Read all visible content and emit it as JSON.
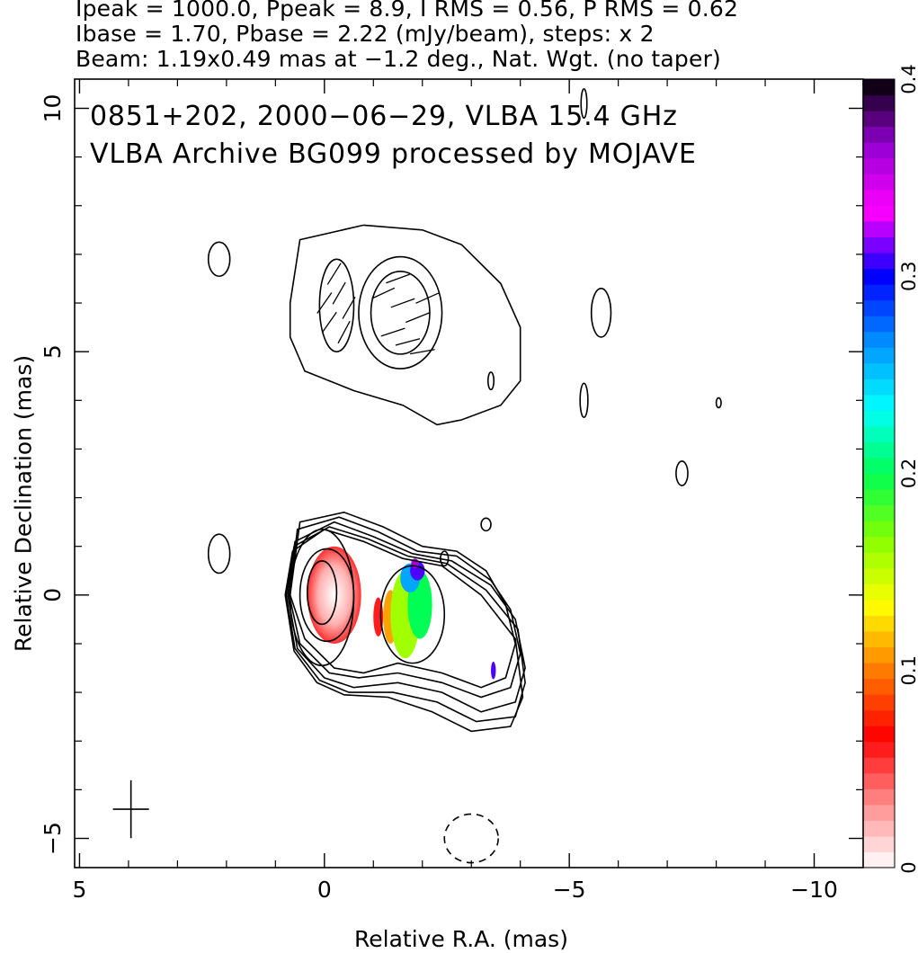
{
  "header": {
    "line1": "Ipeak = 1000.0, Ppeak = 8.9, I RMS = 0.56, P RMS = 0.62",
    "line2": "Ibase = 1.70, Pbase = 2.22 (mJy/beam), steps: x 2",
    "line3": "Beam: 1.19x0.49 mas at −1.2 deg., Nat. Wgt. (no taper)"
  },
  "annotation": {
    "line1": "0851+202, 2000−06−29, VLBA 15.4 GHz",
    "line2": "VLBA Archive BG099 processed by MOJAVE"
  },
  "chart_data": {
    "type": "contour",
    "xlabel": "Relative R.A. (mas)",
    "ylabel": "Relative Declination (mas)",
    "xlim": [
      5.1,
      -11.0
    ],
    "ylim": [
      -5.6,
      10.6
    ],
    "x_ticks": [
      5,
      0,
      -5,
      -10
    ],
    "x_tick_labels": [
      "5",
      "0",
      "−5",
      "−10"
    ],
    "y_ticks": [
      -5,
      0,
      5,
      10
    ],
    "y_tick_labels": [
      "−5",
      "0",
      "5",
      "10"
    ],
    "colorbar": {
      "range": [
        0,
        0.4
      ],
      "ticks": [
        0,
        0.1,
        0.2,
        0.3,
        0.4
      ],
      "tick_labels": [
        "0",
        "0.1",
        "0.2",
        "0.3",
        "0.4"
      ],
      "colors": [
        "#ffffff",
        "#ff8a8a",
        "#ff0000",
        "#ff7a00",
        "#ffff00",
        "#88ff00",
        "#00ff55",
        "#00ffff",
        "#0090ff",
        "#0000ff",
        "#ff00ff",
        "#9400d3",
        "#000000"
      ]
    },
    "core_contours": [
      {
        "cx": 0.05,
        "cy": 0.05,
        "rx": 0.3,
        "ry": 0.65
      },
      {
        "cx": -0.05,
        "cy": 0.0,
        "rx": 0.55,
        "ry": 0.95
      },
      {
        "cx": 0.05,
        "cy": -0.05,
        "rx": 0.65,
        "ry": 1.4
      },
      {
        "cx": -1.8,
        "cy": -0.4,
        "rx": 0.65,
        "ry": 1.0
      }
    ],
    "outer_contours": [
      [
        [
          0.5,
          1.5
        ],
        [
          -0.4,
          1.7
        ],
        [
          -1.2,
          1.4
        ],
        [
          -2.0,
          1.0
        ],
        [
          -2.7,
          0.9
        ],
        [
          -3.3,
          0.5
        ],
        [
          -3.7,
          -0.2
        ],
        [
          -3.9,
          -1.0
        ],
        [
          -3.7,
          -1.7
        ],
        [
          -3.2,
          -1.9
        ],
        [
          -2.4,
          -1.6
        ],
        [
          -1.5,
          -1.4
        ],
        [
          -0.8,
          -1.6
        ],
        [
          -0.2,
          -1.5
        ],
        [
          0.4,
          -0.9
        ],
        [
          0.7,
          0.0
        ]
      ],
      [
        [
          0.55,
          1.35
        ],
        [
          -0.3,
          1.6
        ],
        [
          -1.1,
          1.3
        ],
        [
          -1.9,
          0.9
        ],
        [
          -2.7,
          0.8
        ],
        [
          -3.4,
          0.3
        ],
        [
          -3.8,
          -0.3
        ],
        [
          -4.0,
          -1.2
        ],
        [
          -3.8,
          -1.9
        ],
        [
          -3.2,
          -2.1
        ],
        [
          -2.4,
          -1.8
        ],
        [
          -1.5,
          -1.6
        ],
        [
          -0.7,
          -1.7
        ],
        [
          -0.1,
          -1.6
        ],
        [
          0.5,
          -1.0
        ],
        [
          0.72,
          0.0
        ]
      ],
      [
        [
          0.6,
          1.1
        ],
        [
          -0.2,
          1.5
        ],
        [
          -1.0,
          1.2
        ],
        [
          -1.8,
          0.85
        ],
        [
          -2.6,
          0.7
        ],
        [
          -3.4,
          0.2
        ],
        [
          -3.9,
          -0.5
        ],
        [
          -4.1,
          -1.5
        ],
        [
          -3.9,
          -2.2
        ],
        [
          -3.2,
          -2.4
        ],
        [
          -2.4,
          -2.0
        ],
        [
          -1.5,
          -1.8
        ],
        [
          -0.6,
          -1.9
        ],
        [
          0.0,
          -1.7
        ],
        [
          0.55,
          -1.1
        ],
        [
          0.75,
          0.0
        ]
      ],
      [
        [
          0.62,
          1.0
        ],
        [
          -0.1,
          1.4
        ],
        [
          -0.9,
          1.15
        ],
        [
          -1.7,
          0.8
        ],
        [
          -2.5,
          0.65
        ],
        [
          -3.3,
          0.1
        ],
        [
          -3.95,
          -0.7
        ],
        [
          -4.1,
          -1.8
        ],
        [
          -3.9,
          -2.5
        ],
        [
          -3.1,
          -2.6
        ],
        [
          -2.3,
          -2.2
        ],
        [
          -1.4,
          -2.0
        ],
        [
          -0.5,
          -2.0
        ],
        [
          0.1,
          -1.75
        ],
        [
          0.6,
          -1.1
        ],
        [
          0.78,
          0.0
        ]
      ],
      [
        [
          0.65,
          0.9
        ],
        [
          0.0,
          1.35
        ],
        [
          -0.8,
          1.1
        ],
        [
          -1.6,
          0.75
        ],
        [
          -2.4,
          0.6
        ],
        [
          -3.2,
          0.0
        ],
        [
          -3.9,
          -0.9
        ],
        [
          -4.05,
          -2.1
        ],
        [
          -3.8,
          -2.7
        ],
        [
          -3.0,
          -2.8
        ],
        [
          -2.2,
          -2.4
        ],
        [
          -1.3,
          -2.1
        ],
        [
          -0.4,
          -2.05
        ],
        [
          0.15,
          -1.8
        ],
        [
          0.62,
          -1.15
        ],
        [
          0.8,
          0.0
        ]
      ]
    ],
    "lobe_contours": [
      {
        "cx": -0.25,
        "cy": 5.95,
        "rx": 0.35,
        "ry": 0.95
      },
      {
        "cx": -1.55,
        "cy": 5.8,
        "rx": 0.6,
        "ry": 0.85
      },
      {
        "cx": -1.55,
        "cy": 5.8,
        "rx": 0.85,
        "ry": 1.15
      }
    ],
    "lobe_outline": [
      [
        0.7,
        6.0
      ],
      [
        0.5,
        7.3
      ],
      [
        -0.8,
        7.6
      ],
      [
        -2.0,
        7.5
      ],
      [
        -2.8,
        7.2
      ],
      [
        -3.6,
        6.4
      ],
      [
        -4.0,
        5.5
      ],
      [
        -4.0,
        4.4
      ],
      [
        -3.6,
        3.9
      ],
      [
        -2.8,
        3.6
      ],
      [
        -2.3,
        3.5
      ],
      [
        -1.6,
        3.9
      ],
      [
        -0.6,
        4.2
      ],
      [
        0.4,
        4.6
      ],
      [
        0.7,
        5.3
      ]
    ],
    "isolated_contours": [
      {
        "cx": 2.15,
        "cy": 6.9,
        "rx": 0.22,
        "ry": 0.35
      },
      {
        "cx": 2.15,
        "cy": 0.85,
        "rx": 0.22,
        "ry": 0.4
      },
      {
        "cx": -5.65,
        "cy": 5.8,
        "rx": 0.2,
        "ry": 0.5
      },
      {
        "cx": -7.3,
        "cy": 2.5,
        "rx": 0.12,
        "ry": 0.25
      },
      {
        "cx": -3.4,
        "cy": 4.4,
        "rx": 0.06,
        "ry": 0.18
      },
      {
        "cx": -5.3,
        "cy": 4.0,
        "rx": 0.08,
        "ry": 0.35
      },
      {
        "cx": -8.05,
        "cy": 3.95,
        "rx": 0.05,
        "ry": 0.1
      },
      {
        "cx": -2.45,
        "cy": 0.75,
        "rx": 0.08,
        "ry": 0.15
      },
      {
        "cx": -3.3,
        "cy": 1.45,
        "rx": 0.1,
        "ry": 0.13
      },
      {
        "cx": -5.3,
        "cy": 10.1,
        "rx": 0.06,
        "ry": 0.3
      }
    ],
    "negative_contours": [
      {
        "cx": -3.0,
        "cy": -5.0,
        "rx": 0.55,
        "ry": 0.5
      }
    ],
    "beam": {
      "x": 3.95,
      "y": -4.4,
      "major_mas": 1.19,
      "minor_mas": 0.49,
      "pa_deg": -1.2
    },
    "pol_vectors": [
      [
        -0.3,
        6.2,
        60
      ],
      [
        -0.1,
        5.6,
        55
      ],
      [
        -0.4,
        5.4,
        62
      ],
      [
        -0.2,
        6.6,
        58
      ],
      [
        -0.5,
        5.9,
        60
      ],
      [
        0.0,
        6.0,
        55
      ],
      [
        -1.2,
        6.2,
        25
      ],
      [
        -1.6,
        6.0,
        20
      ],
      [
        -1.9,
        5.7,
        22
      ],
      [
        -1.4,
        5.4,
        18
      ],
      [
        -2.1,
        6.1,
        24
      ],
      [
        -1.7,
        5.2,
        15
      ],
      [
        -1.5,
        6.5,
        20
      ],
      [
        -2.0,
        5.0,
        10
      ]
    ],
    "frac_pol_regions": [
      {
        "name": "core",
        "cx": -0.2,
        "cy": 0.0,
        "rx": 0.55,
        "ry": 1.0,
        "frac": 0.04
      },
      {
        "name": "jet-red",
        "cx": -1.1,
        "cy": -0.45,
        "rx": 0.1,
        "ry": 0.4,
        "frac": 0.06
      },
      {
        "name": "jet-orange",
        "cx": -1.35,
        "cy": -0.45,
        "rx": 0.15,
        "ry": 0.55,
        "frac": 0.11
      },
      {
        "name": "jet-yellow",
        "cx": -1.65,
        "cy": -0.4,
        "rx": 0.3,
        "ry": 0.9,
        "frac": 0.16
      },
      {
        "name": "jet-green",
        "cx": -1.95,
        "cy": -0.2,
        "rx": 0.25,
        "ry": 0.7,
        "frac": 0.2
      },
      {
        "name": "jet-cyan",
        "cx": -1.75,
        "cy": 0.35,
        "rx": 0.2,
        "ry": 0.3,
        "frac": 0.26
      },
      {
        "name": "jet-blue",
        "cx": -1.9,
        "cy": 0.5,
        "rx": 0.15,
        "ry": 0.2,
        "frac": 0.31
      },
      {
        "name": "jet-purple",
        "cx": -1.85,
        "cy": 0.65,
        "rx": 0.08,
        "ry": 0.1,
        "frac": 0.36
      },
      {
        "name": "knot-blue",
        "cx": -3.45,
        "cy": -1.55,
        "rx": 0.05,
        "ry": 0.18,
        "frac": 0.31
      }
    ]
  }
}
